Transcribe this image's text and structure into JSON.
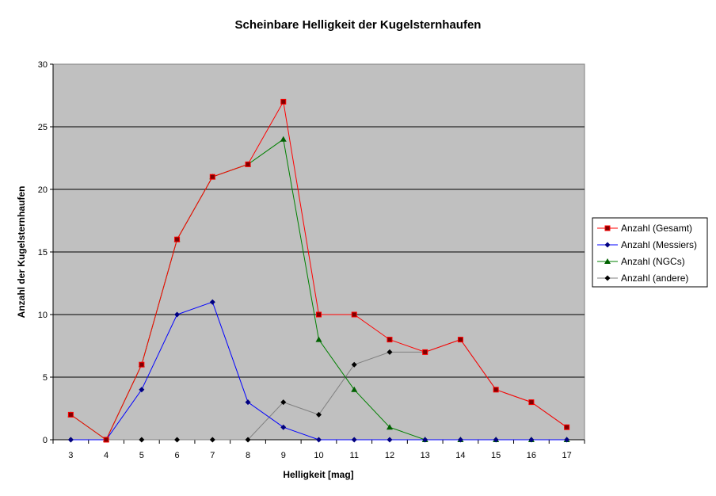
{
  "chart_data": {
    "type": "line",
    "title": "Scheinbare Helligkeit der Kugelsternhaufen",
    "xlabel": "Helligkeit [mag]",
    "ylabel": "Anzahl der Kugelsternhaufen",
    "x": [
      3,
      4,
      5,
      6,
      7,
      8,
      9,
      10,
      11,
      12,
      13,
      14,
      15,
      16,
      17
    ],
    "ylim": [
      0,
      30
    ],
    "yticks": [
      0,
      5,
      10,
      15,
      20,
      25,
      30
    ],
    "grid": true,
    "plot_background": "#c0c0c0",
    "legend_position": "right",
    "series": [
      {
        "name": "Anzahl (Gesamt)",
        "color": "#ff0000",
        "marker": "square",
        "values": [
          2,
          0,
          6,
          16,
          21,
          22,
          27,
          10,
          10,
          8,
          7,
          8,
          4,
          3,
          1
        ]
      },
      {
        "name": "Anzahl (Messiers)",
        "color": "#0000ff",
        "marker": "diamond",
        "values": [
          0,
          0,
          4,
          10,
          11,
          3,
          1,
          0,
          0,
          0,
          0,
          0,
          0,
          0,
          0
        ]
      },
      {
        "name": "Anzahl (NGCs)",
        "color": "#008000",
        "marker": "triangle",
        "values": [
          2,
          0,
          6,
          16,
          21,
          22,
          24,
          8,
          4,
          1,
          0,
          0,
          0,
          0,
          0
        ]
      },
      {
        "name": "Anzahl (andere)",
        "color": "#808080",
        "marker": "diamond",
        "values": [
          0,
          0,
          0,
          0,
          0,
          0,
          3,
          2,
          6,
          7,
          7,
          8,
          4,
          3,
          1
        ]
      }
    ]
  }
}
